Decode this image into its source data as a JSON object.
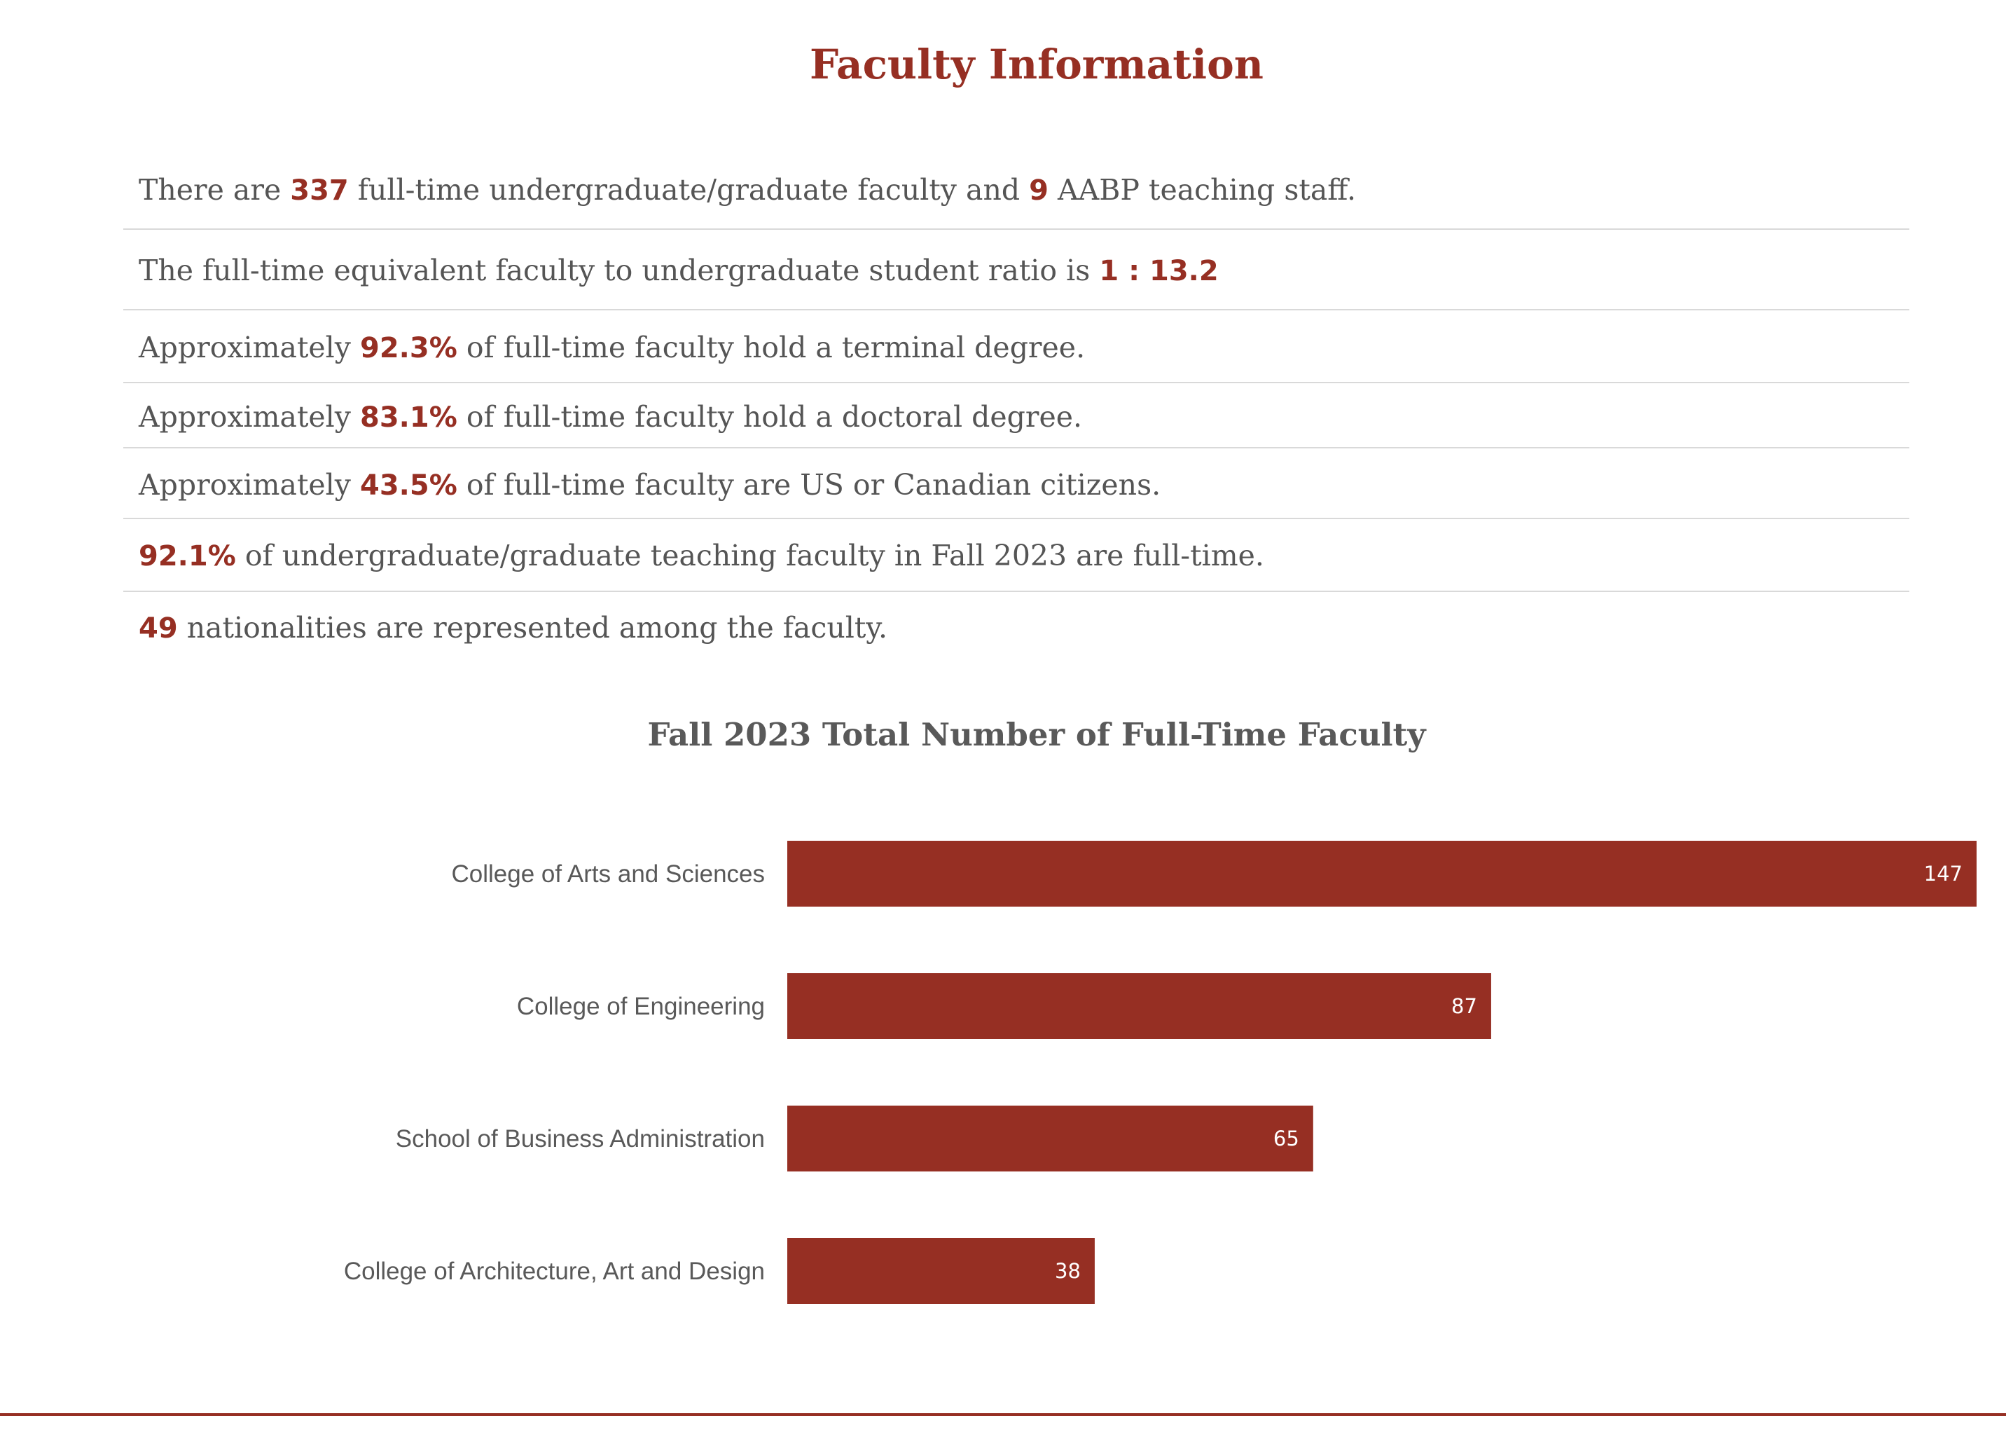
{
  "title": "Faculty Information",
  "facts": [
    {
      "pre": "There are ",
      "v1": "337",
      "mid": " full-time undergraduate/graduate faculty and ",
      "v2": "9",
      "post": " AABP teaching staff."
    },
    {
      "pre": "The full-time equivalent faculty to undergraduate student ratio is ",
      "value": "1 : 13.2",
      "post": ""
    },
    {
      "pre": "Approximately ",
      "value": "92.3%",
      "post": " of full-time faculty hold a terminal degree."
    },
    {
      "pre": "Approximately ",
      "value": "83.1%",
      "post": " of full-time faculty hold a doctoral degree."
    },
    {
      "pre": "Approximately ",
      "value": "43.5%",
      "post": " of full-time faculty are US or Canadian citizens."
    },
    {
      "pre": "",
      "value": "92.1%",
      "post": " of undergraduate/graduate teaching faculty in Fall 2023 are full-time."
    },
    {
      "pre": "",
      "value": "49",
      "post": " nationalities are represented among the faculty."
    }
  ],
  "colors": {
    "accent": "#962f23",
    "text": "#555555",
    "rule": "#d9d9d9"
  },
  "chart_data": {
    "type": "bar",
    "orientation": "horizontal",
    "title": "Fall 2023 Total Number of Full-Time Faculty",
    "categories": [
      "College of Arts and Sciences",
      "College of Engineering",
      "School of Business Administration",
      "College of Architecture, Art and Design"
    ],
    "values": [
      147,
      87,
      65,
      38
    ],
    "xlim": [
      0,
      147
    ],
    "grid": false,
    "legend": "none",
    "bar_color": "#962f23"
  }
}
